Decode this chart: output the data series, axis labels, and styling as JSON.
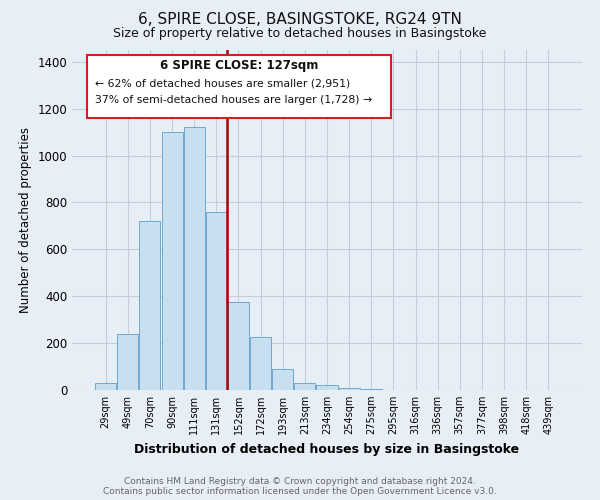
{
  "title": "6, SPIRE CLOSE, BASINGSTOKE, RG24 9TN",
  "subtitle": "Size of property relative to detached houses in Basingstoke",
  "xlabel": "Distribution of detached houses by size in Basingstoke",
  "ylabel": "Number of detached properties",
  "bar_labels": [
    "29sqm",
    "49sqm",
    "70sqm",
    "90sqm",
    "111sqm",
    "131sqm",
    "152sqm",
    "172sqm",
    "193sqm",
    "213sqm",
    "234sqm",
    "254sqm",
    "275sqm",
    "295sqm",
    "316sqm",
    "336sqm",
    "357sqm",
    "377sqm",
    "398sqm",
    "418sqm",
    "439sqm"
  ],
  "bar_values": [
    30,
    240,
    720,
    1100,
    1120,
    760,
    375,
    225,
    90,
    30,
    20,
    10,
    5,
    2,
    2,
    1,
    0,
    0,
    0,
    0,
    0
  ],
  "bar_color": "#c8dff0",
  "bar_edge_color": "#6fa8d0",
  "vline_color": "#aa0000",
  "ylim": [
    0,
    1450
  ],
  "yticks": [
    0,
    200,
    400,
    600,
    800,
    1000,
    1200,
    1400
  ],
  "annotation_title": "6 SPIRE CLOSE: 127sqm",
  "annotation_line1": "← 62% of detached houses are smaller (2,951)",
  "annotation_line2": "37% of semi-detached houses are larger (1,728) →",
  "footer1": "Contains HM Land Registry data © Crown copyright and database right 2024.",
  "footer2": "Contains public sector information licensed under the Open Government Licence v3.0.",
  "bg_color": "#e8eef5",
  "plot_bg_color": "#e8eef5",
  "grid_color": "#c0cfe0"
}
